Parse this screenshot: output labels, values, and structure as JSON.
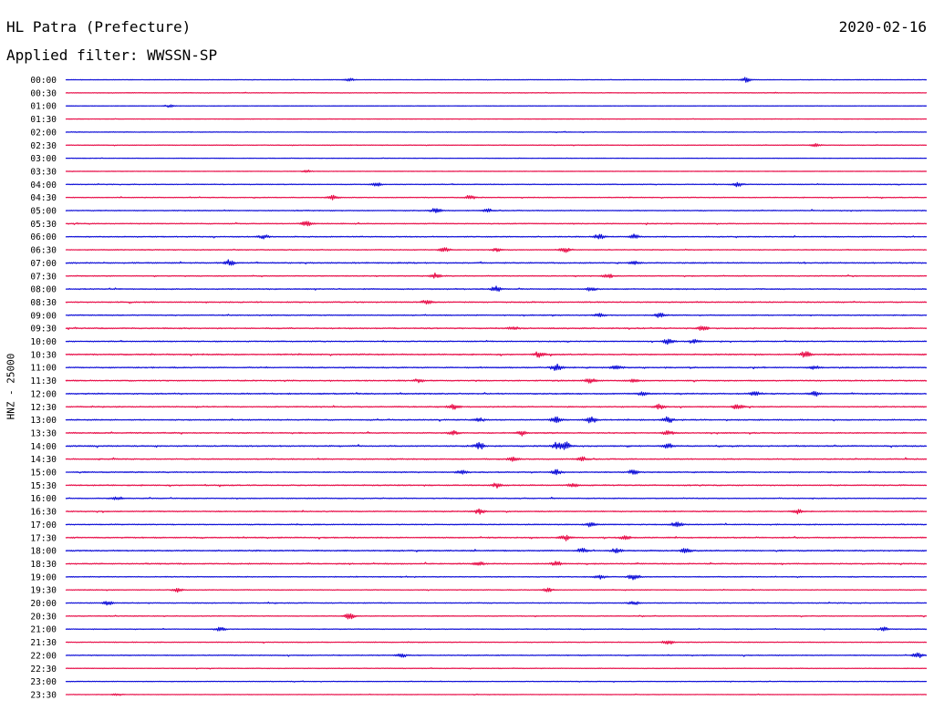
{
  "header": {
    "station": "HL Patra (Prefecture)",
    "date": "2020-02-16",
    "filter": "Applied filter: WWSSN-SP"
  },
  "chart_data": {
    "type": "line",
    "title": "HL Patra (Prefecture)",
    "subtitle": "Applied filter: WWSSN-SP",
    "ylabel": "HNZ - 25000",
    "rows": [
      "00:00",
      "00:30",
      "01:00",
      "01:30",
      "02:00",
      "02:30",
      "03:00",
      "03:30",
      "04:00",
      "04:30",
      "05:00",
      "05:30",
      "06:00",
      "06:30",
      "07:00",
      "07:30",
      "08:00",
      "08:30",
      "09:00",
      "09:30",
      "10:00",
      "10:30",
      "11:00",
      "11:30",
      "12:00",
      "12:30",
      "13:00",
      "13:30",
      "14:00",
      "14:30",
      "15:00",
      "15:30",
      "16:00",
      "16:30",
      "17:00",
      "17:30",
      "18:00",
      "18:30",
      "19:00",
      "19:30",
      "20:00",
      "20:30",
      "21:00",
      "21:30",
      "22:00",
      "22:30",
      "23:00",
      "23:30"
    ],
    "series_colors": [
      "#1010d8",
      "#e8104a"
    ],
    "noise_levels": [
      0.15,
      0.25,
      0.12,
      0.12,
      0.25,
      0.25,
      0.12,
      0.12,
      0.3,
      0.3,
      0.35,
      0.35,
      0.4,
      0.35,
      0.45,
      0.35,
      0.4,
      0.45,
      0.4,
      0.45,
      0.4,
      0.5,
      0.45,
      0.45,
      0.5,
      0.45,
      0.45,
      0.45,
      0.5,
      0.45,
      0.45,
      0.45,
      0.35,
      0.4,
      0.4,
      0.45,
      0.5,
      0.45,
      0.35,
      0.3,
      0.35,
      0.3,
      0.3,
      0.3,
      0.35,
      0.25,
      0.25,
      0.2
    ],
    "events": [
      [
        [
          0.79,
          3
        ],
        [
          0.33,
          2
        ]
      ],
      [],
      [
        [
          0.12,
          1.5
        ]
      ],
      [],
      [],
      [
        [
          0.87,
          2
        ]
      ],
      [],
      [
        [
          0.28,
          1.5
        ]
      ],
      [
        [
          0.36,
          3
        ],
        [
          0.78,
          3
        ]
      ],
      [
        [
          0.31,
          3
        ],
        [
          0.47,
          2.5
        ]
      ],
      [
        [
          0.43,
          3
        ],
        [
          0.49,
          2
        ]
      ],
      [
        [
          0.28,
          3
        ]
      ],
      [
        [
          0.23,
          2
        ],
        [
          0.62,
          3
        ],
        [
          0.66,
          2.5
        ]
      ],
      [
        [
          0.44,
          3
        ],
        [
          0.58,
          3
        ],
        [
          0.5,
          2
        ]
      ],
      [
        [
          0.19,
          3.5
        ],
        [
          0.66,
          2.5
        ]
      ],
      [
        [
          0.43,
          3
        ],
        [
          0.63,
          3
        ]
      ],
      [
        [
          0.5,
          3
        ],
        [
          0.61,
          2.5
        ]
      ],
      [
        [
          0.42,
          3
        ]
      ],
      [
        [
          0.62,
          2.5
        ],
        [
          0.69,
          3
        ]
      ],
      [
        [
          0.74,
          3
        ],
        [
          0.52,
          2
        ]
      ],
      [
        [
          0.7,
          4
        ],
        [
          0.73,
          3
        ]
      ],
      [
        [
          0.55,
          3
        ],
        [
          0.86,
          4
        ]
      ],
      [
        [
          0.57,
          4.5
        ],
        [
          0.64,
          2.5
        ],
        [
          0.87,
          2.5
        ]
      ],
      [
        [
          0.41,
          2
        ],
        [
          0.61,
          3.5
        ],
        [
          0.66,
          2
        ]
      ],
      [
        [
          0.67,
          2.5
        ],
        [
          0.8,
          3
        ],
        [
          0.87,
          3
        ]
      ],
      [
        [
          0.45,
          4
        ],
        [
          0.69,
          3
        ],
        [
          0.78,
          3
        ]
      ],
      [
        [
          0.48,
          2.5
        ],
        [
          0.57,
          4
        ],
        [
          0.61,
          4
        ],
        [
          0.7,
          4
        ]
      ],
      [
        [
          0.45,
          2.5
        ],
        [
          0.53,
          3
        ],
        [
          0.7,
          3
        ]
      ],
      [
        [
          0.48,
          4
        ],
        [
          0.57,
          4
        ],
        [
          0.58,
          5
        ],
        [
          0.7,
          3
        ]
      ],
      [
        [
          0.52,
          3
        ],
        [
          0.6,
          2.5
        ]
      ],
      [
        [
          0.46,
          2.5
        ],
        [
          0.57,
          3
        ],
        [
          0.66,
          3
        ]
      ],
      [
        [
          0.5,
          2.5
        ],
        [
          0.59,
          2.5
        ]
      ],
      [
        [
          0.06,
          2
        ]
      ],
      [
        [
          0.48,
          3
        ],
        [
          0.85,
          3
        ]
      ],
      [
        [
          0.61,
          3
        ],
        [
          0.71,
          3.5
        ]
      ],
      [
        [
          0.58,
          3.5
        ],
        [
          0.65,
          2.5
        ]
      ],
      [
        [
          0.6,
          3
        ],
        [
          0.64,
          3.5
        ],
        [
          0.72,
          3
        ]
      ],
      [
        [
          0.48,
          2.5
        ],
        [
          0.57,
          3
        ]
      ],
      [
        [
          0.62,
          3
        ],
        [
          0.66,
          5
        ]
      ],
      [
        [
          0.13,
          2.5
        ],
        [
          0.56,
          2.5
        ]
      ],
      [
        [
          0.05,
          3
        ],
        [
          0.66,
          2
        ]
      ],
      [
        [
          0.33,
          3.5
        ]
      ],
      [
        [
          0.18,
          2.5
        ],
        [
          0.95,
          2.5
        ]
      ],
      [
        [
          0.7,
          3
        ]
      ],
      [
        [
          0.39,
          2.5
        ],
        [
          0.99,
          3
        ]
      ],
      [],
      [],
      [
        [
          0.06,
          1.5
        ]
      ]
    ]
  }
}
